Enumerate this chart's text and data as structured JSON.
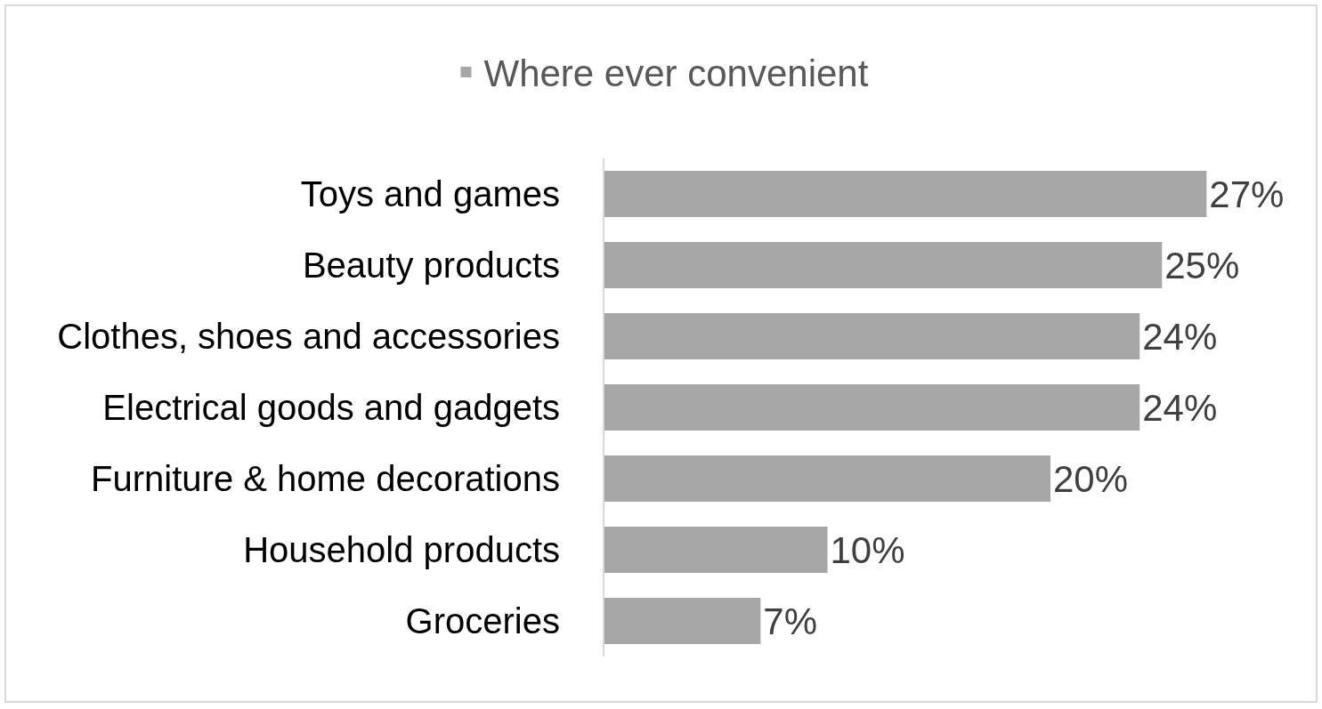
{
  "chart_data": {
    "type": "bar",
    "orientation": "horizontal",
    "legend": "top",
    "tick_labels": "y",
    "categories": [
      "Toys and games",
      "Beauty products",
      "Clothes, shoes and accessories",
      "Electrical goods and gadgets",
      "Furniture & home decorations",
      "Household products",
      "Groceries"
    ],
    "series": [
      {
        "name": "Where ever convenient",
        "color": "#a6a6a6",
        "values": [
          27,
          25,
          24,
          24,
          20,
          10,
          7
        ],
        "value_labels": [
          "27%",
          "25%",
          "24%",
          "24%",
          "20%",
          "10%",
          "7%"
        ]
      }
    ]
  }
}
